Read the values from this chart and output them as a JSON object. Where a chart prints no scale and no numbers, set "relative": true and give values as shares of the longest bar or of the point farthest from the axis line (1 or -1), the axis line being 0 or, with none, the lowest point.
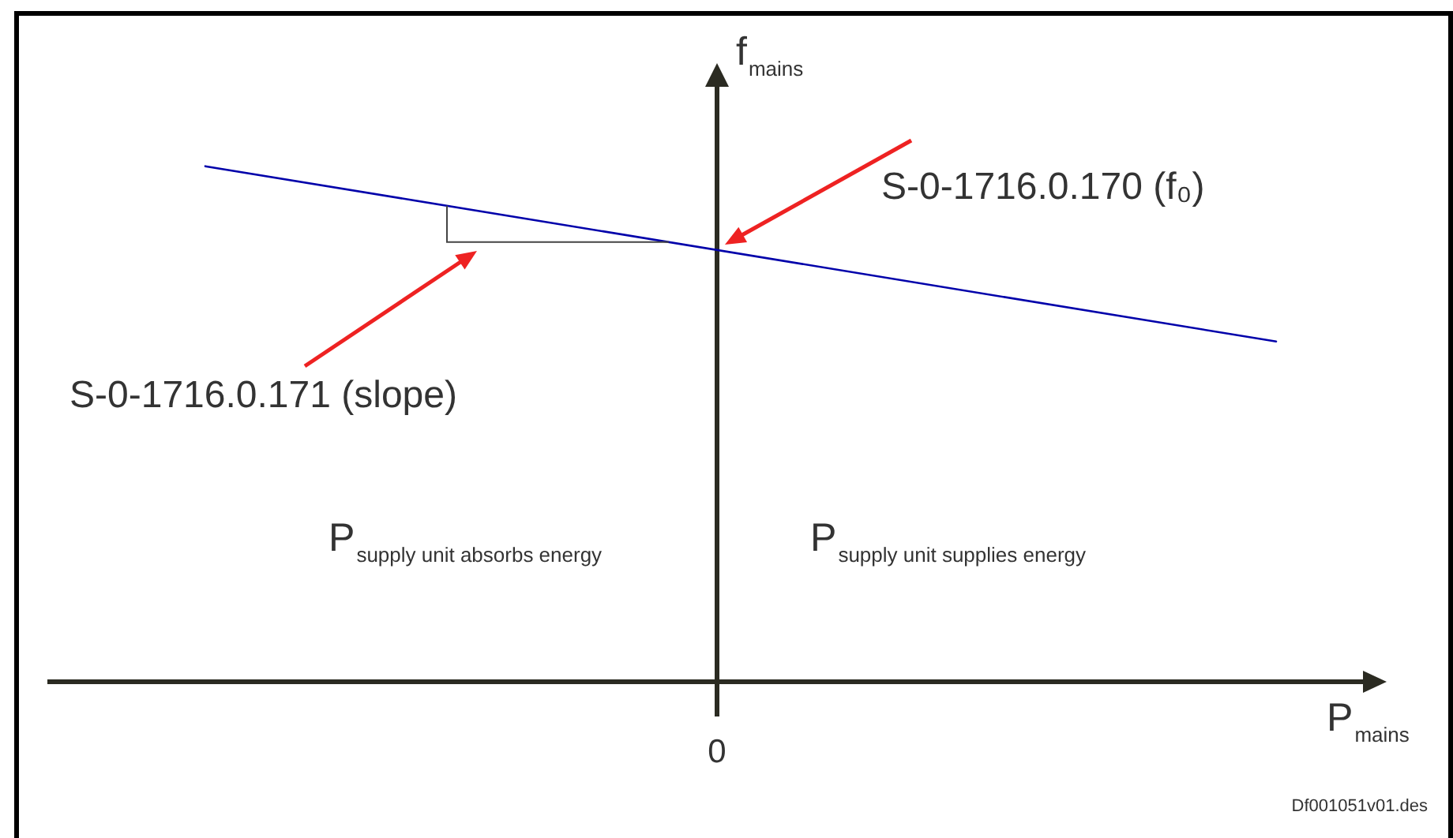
{
  "chart_data": {
    "type": "line",
    "xlabel": "P$_{mains}$",
    "ylabel": "f$_{mains}$",
    "categories": [
      null,
      null
    ],
    "relative": true,
    "series": [
      {
        "color": "#0000aa",
        "values": [
          1,
          0.66
        ]
      }
    ],
    "annotations": [
      "S-0-1716.0.170 (f₀)",
      "S-0-1716.0.171 (slope)",
      "0",
      "P$_{supply unit absorbs energy}$",
      "P$_{supply unit supplies energy}$",
      "Df001051v01.des"
    ]
  }
}
